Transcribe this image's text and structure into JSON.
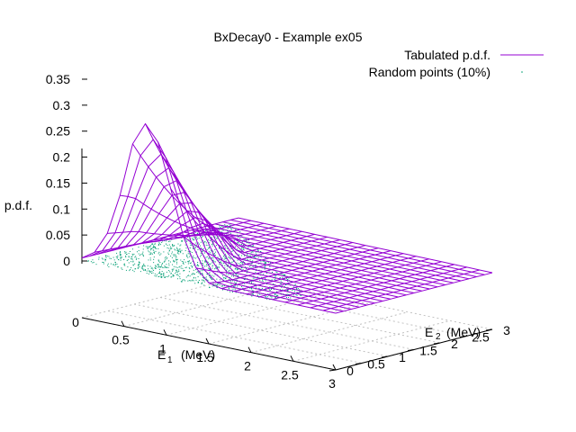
{
  "chart_data": {
    "type": "surface3d",
    "title": "BxDecay0 - Example ex05",
    "zlabel": "p.d.f.",
    "x_axis": {
      "label_main": "E",
      "label_sub": "1",
      "label_unit": "(MeV)",
      "range": [
        0,
        3
      ],
      "ticks": [
        "0.5",
        "1",
        "1.5",
        "2",
        "2.5",
        "3"
      ],
      "origin_label": "0"
    },
    "y_axis": {
      "label_main": "E",
      "label_sub": "2",
      "label_unit": "(MeV)",
      "range": [
        0,
        3
      ],
      "ticks": [
        "0",
        "0.5",
        "1",
        "1.5",
        "2",
        "2.5",
        "3"
      ]
    },
    "z_axis": {
      "range": [
        0,
        0.35
      ],
      "ticks": [
        "0",
        "0.05",
        "0.1",
        "0.15",
        "0.2",
        "0.25",
        "0.3",
        "0.35"
      ]
    },
    "grid": true,
    "legend_position": "top-right",
    "series": [
      {
        "name": "Tabulated p.d.f.",
        "kind": "mesh",
        "color": "#9400d3",
        "peak": {
          "E1": 0.85,
          "E2": 0.0,
          "pdf": 0.35
        }
      },
      {
        "name": "Random points (10%)",
        "kind": "points",
        "color": "#009e73"
      }
    ]
  }
}
